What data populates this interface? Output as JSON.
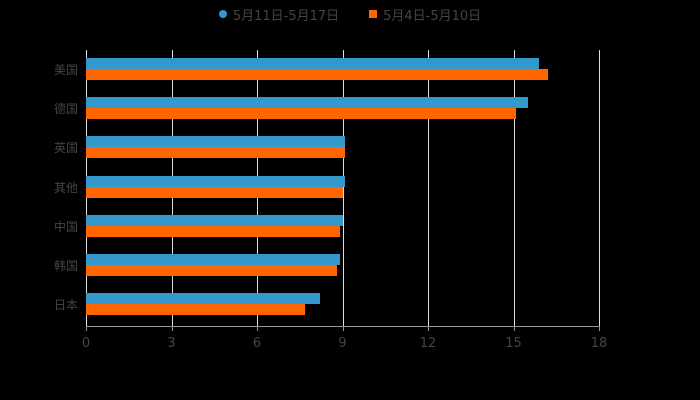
{
  "chart_data": {
    "type": "bar",
    "orientation": "horizontal",
    "title": "",
    "categories": [
      "美国",
      "德国",
      "英国",
      "其他",
      "中国",
      "韩国",
      "日本"
    ],
    "series": [
      {
        "name": "5月11日-5月17日",
        "color": "#3399cc",
        "values": [
          15.9,
          15.5,
          9.1,
          9.1,
          9.0,
          8.9,
          8.2
        ]
      },
      {
        "name": "5月4日-5月10日",
        "color": "#ff6600",
        "values": [
          16.2,
          15.1,
          9.1,
          9.0,
          8.9,
          8.8,
          7.7
        ]
      }
    ],
    "xlabel": "",
    "ylabel": "",
    "xlim": [
      0,
      18
    ],
    "xticks": [
      "0",
      "3",
      "6",
      "9",
      "12",
      "15",
      "18"
    ],
    "grid": true,
    "legend_position": "top"
  },
  "legend": [
    {
      "label": "5月11日-5月17日",
      "color": "#3399cc"
    },
    {
      "label": "5月4日-5月10日",
      "color": "#ff6600"
    }
  ]
}
